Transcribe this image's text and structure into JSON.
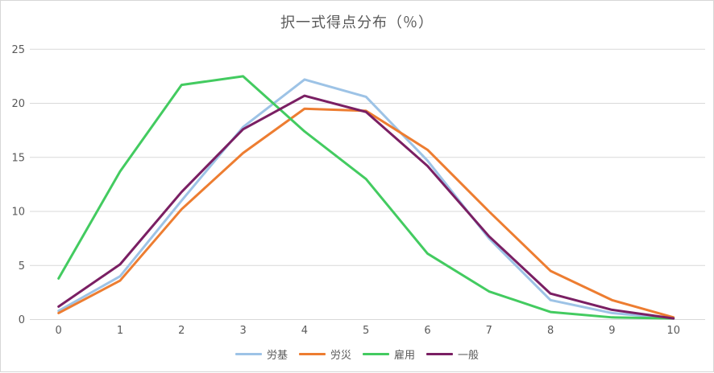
{
  "chart": {
    "frame_border_color": "#d7d7d7",
    "grid_color": "#d9d9d9",
    "text_color": "#595959",
    "background": "#ffffff"
  },
  "chart_data": {
    "type": "line",
    "title": "択一式得点分布（％）",
    "xlabel": "",
    "ylabel": "",
    "x": [
      0,
      1,
      2,
      3,
      4,
      5,
      6,
      7,
      8,
      9,
      10
    ],
    "ylim": [
      0,
      25
    ],
    "yticks": [
      0,
      5,
      10,
      15,
      20,
      25
    ],
    "grid": true,
    "legend_position": "bottom",
    "series": [
      {
        "name": "労基",
        "color": "#9DC3E6",
        "values": [
          0.8,
          4.0,
          11.0,
          17.8,
          22.2,
          20.6,
          14.7,
          7.5,
          1.8,
          0.6,
          0.1
        ]
      },
      {
        "name": "労災",
        "color": "#ED7D31",
        "values": [
          0.6,
          3.6,
          10.2,
          15.4,
          19.5,
          19.3,
          15.7,
          10.0,
          4.5,
          1.8,
          0.2
        ]
      },
      {
        "name": "雇用",
        "color": "#43CB60",
        "values": [
          3.8,
          13.7,
          21.7,
          22.5,
          17.4,
          13.0,
          6.1,
          2.6,
          0.7,
          0.2,
          0.1
        ]
      },
      {
        "name": "一般",
        "color": "#7A1F63",
        "values": [
          1.2,
          5.1,
          11.8,
          17.6,
          20.7,
          19.2,
          14.2,
          7.7,
          2.4,
          0.9,
          0.1
        ]
      }
    ]
  }
}
